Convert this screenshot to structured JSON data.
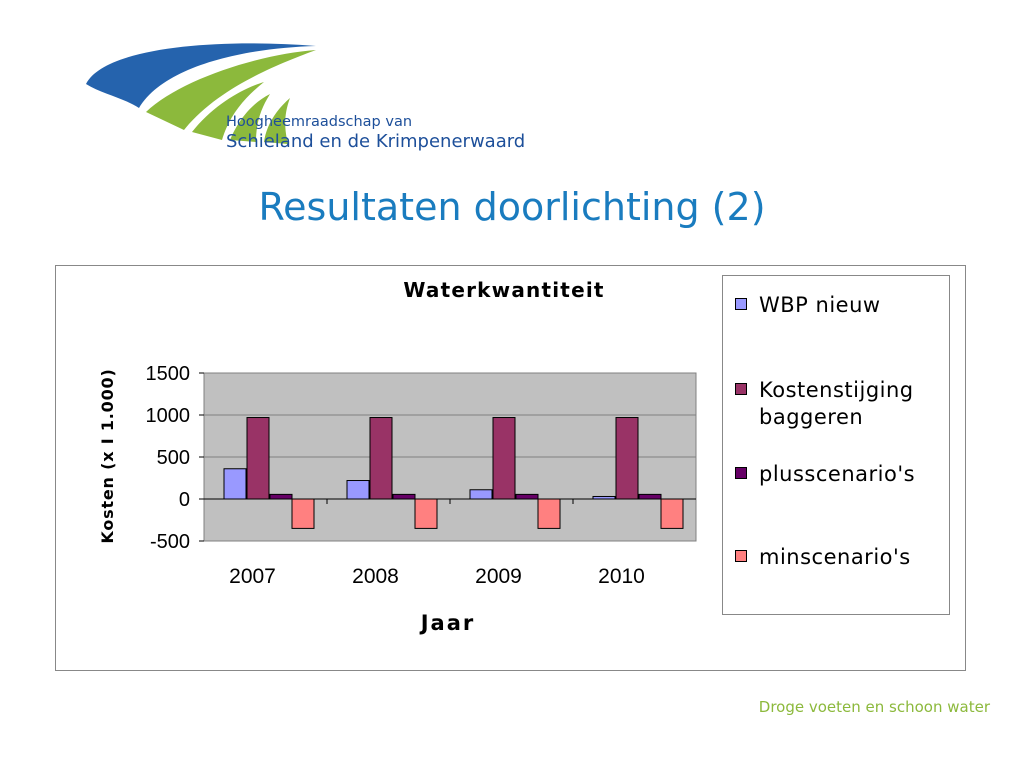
{
  "logo": {
    "line1": "Hoogheemraadschap van",
    "line2": "Schieland en de Krimpenerwaard"
  },
  "slide": {
    "title": "Resultaten doorlichting (2)",
    "footer": "Droge voeten en schoon water"
  },
  "colors": {
    "title": "#1a7cbf",
    "footer": "#8cb93c",
    "plot_area": "#c0c0c0",
    "logo_blue": "#2563ad",
    "logo_green": "#8cb93c"
  },
  "chart_data": {
    "type": "bar",
    "title": "Waterkwantiteit",
    "xlabel": "Jaar",
    "ylabel": "Kosten (x I 1.000)",
    "categories": [
      "2007",
      "2008",
      "2009",
      "2010"
    ],
    "ylim": [
      -500,
      1500
    ],
    "yticks": [
      -500,
      0,
      500,
      1000,
      1500
    ],
    "grid": true,
    "legend_position": "right",
    "series": [
      {
        "name": "WBP nieuw",
        "color": "#9999ff",
        "values": [
          360,
          220,
          110,
          30
        ]
      },
      {
        "name": "Kostenstijging baggeren",
        "color": "#993366",
        "values": [
          970,
          970,
          970,
          970
        ]
      },
      {
        "name": "plusscenario's",
        "color": "#660066",
        "values": [
          55,
          55,
          55,
          55
        ]
      },
      {
        "name": "minscenario's",
        "color": "#ff8080",
        "values": [
          -350,
          -350,
          -350,
          -350
        ]
      }
    ]
  }
}
